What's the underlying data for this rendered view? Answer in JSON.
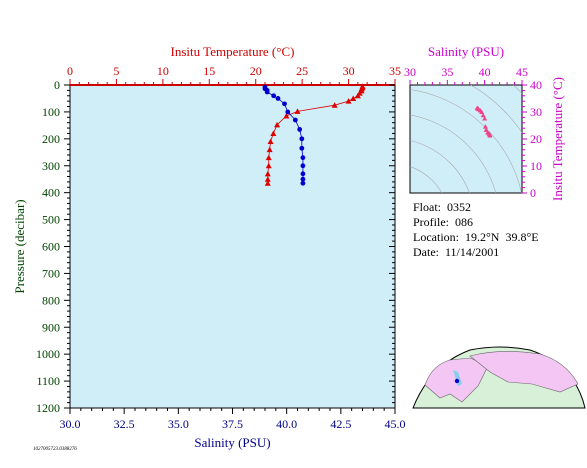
{
  "chart_data": [
    {
      "type": "line",
      "panel": "main-profile",
      "x_top": {
        "label": "Insitu Temperature (°C)",
        "ticks": [
          "0",
          "5",
          "10",
          "15",
          "20",
          "25",
          "30",
          "35"
        ],
        "range": [
          0,
          35
        ],
        "color": "#cc0000"
      },
      "x_bottom": {
        "label": "Salinity (PSU)",
        "ticks": [
          "30.0",
          "32.5",
          "35.0",
          "37.5",
          "40.0",
          "42.5",
          "45.0"
        ],
        "range": [
          30,
          45
        ],
        "color": "#00008b"
      },
      "y": {
        "label": "Pressure (decibar)",
        "ticks": [
          "0",
          "100",
          "200",
          "300",
          "400",
          "500",
          "600",
          "700",
          "800",
          "900",
          "1000",
          "1100",
          "1200"
        ],
        "range": [
          0,
          1200
        ],
        "inverted": true,
        "color": "#004400"
      },
      "series": [
        {
          "marker": "triangle",
          "color": "#dd0000",
          "axis": "top",
          "points": [
            [
              31.5,
              5
            ],
            [
              31.5,
              10
            ],
            [
              31.4,
              15
            ],
            [
              31.4,
              22
            ],
            [
              31.2,
              30
            ],
            [
              31.0,
              40
            ],
            [
              30.5,
              50
            ],
            [
              30.0,
              60
            ],
            [
              28.5,
              75
            ],
            [
              24.5,
              98
            ],
            [
              23.3,
              115
            ],
            [
              22.3,
              148
            ],
            [
              21.9,
              180
            ],
            [
              21.6,
              210
            ],
            [
              21.5,
              240
            ],
            [
              21.4,
              270
            ],
            [
              21.4,
              300
            ],
            [
              21.3,
              330
            ],
            [
              21.3,
              350
            ],
            [
              21.3,
              365
            ]
          ]
        },
        {
          "marker": "circle",
          "color": "#0000cc",
          "axis": "bottom",
          "points": [
            [
              39.0,
              8
            ],
            [
              39.0,
              14
            ],
            [
              39.1,
              20
            ],
            [
              39.1,
              26
            ],
            [
              39.4,
              40
            ],
            [
              39.6,
              50
            ],
            [
              39.9,
              70
            ],
            [
              40.05,
              100
            ],
            [
              40.4,
              130
            ],
            [
              40.6,
              165
            ],
            [
              40.7,
              200
            ],
            [
              40.7,
              235
            ],
            [
              40.75,
              270
            ],
            [
              40.75,
              300
            ],
            [
              40.75,
              330
            ],
            [
              40.75,
              350
            ],
            [
              40.75,
              365
            ]
          ]
        }
      ]
    },
    {
      "type": "scatter",
      "panel": "ts-inset",
      "x": {
        "label": "Salinity (PSU)",
        "ticks": [
          "30",
          "35",
          "40",
          "45"
        ],
        "range": [
          30,
          45
        ],
        "color": "#cc00cc"
      },
      "y": {
        "label": "Insitu Temperature (°C)",
        "ticks": [
          "0",
          "10",
          "20",
          "30",
          "40"
        ],
        "range": [
          0,
          40
        ],
        "color": "#cc00cc"
      },
      "series": [
        {
          "color": "#ee4488",
          "points": [
            [
              39.0,
              31.5
            ],
            [
              39.1,
              31.3
            ],
            [
              39.2,
              31.0
            ],
            [
              39.4,
              30.6
            ],
            [
              39.6,
              30.0
            ],
            [
              39.8,
              28.8
            ],
            [
              40.0,
              27.6
            ],
            [
              40.1,
              24.6
            ],
            [
              40.2,
              23.4
            ],
            [
              40.4,
              22.4
            ],
            [
              40.6,
              21.9
            ],
            [
              40.7,
              21.6
            ],
            [
              40.7,
              21.3
            ]
          ]
        }
      ]
    }
  ],
  "info": {
    "float": "Float:  0352",
    "profile": "Profile:  086",
    "location": "Location:  19.2°N  39.8°E",
    "date": "Date:  11/14/2001"
  },
  "footer_id": "1027005723.0388276"
}
